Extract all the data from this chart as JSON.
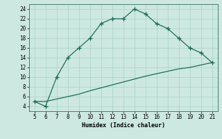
{
  "xlabel": "Humidex (Indice chaleur)",
  "bg_color": "#cce8e0",
  "grid_color": "#b0d4cc",
  "line_color": "#1a6b5a",
  "x_curve": [
    5,
    6,
    7,
    8,
    9,
    10,
    11,
    12,
    13,
    14,
    15,
    16,
    17,
    18,
    19,
    20,
    21
  ],
  "y_curve": [
    5,
    4,
    10,
    14,
    16,
    18,
    21,
    22,
    22,
    24,
    23,
    21,
    20,
    18,
    16,
    15,
    13
  ],
  "x_line": [
    5,
    6,
    7,
    8,
    9,
    10,
    11,
    12,
    13,
    14,
    15,
    16,
    17,
    18,
    19,
    20,
    21
  ],
  "y_line": [
    5,
    5,
    5.5,
    6.0,
    6.5,
    7.2,
    7.8,
    8.4,
    9.0,
    9.6,
    10.2,
    10.7,
    11.2,
    11.7,
    12.0,
    12.5,
    13.0
  ],
  "xlim": [
    4.5,
    21.5
  ],
  "ylim": [
    3,
    25
  ],
  "xticks": [
    5,
    6,
    7,
    8,
    9,
    10,
    11,
    12,
    13,
    14,
    15,
    16,
    17,
    18,
    19,
    20,
    21
  ],
  "yticks": [
    4,
    6,
    8,
    10,
    12,
    14,
    16,
    18,
    20,
    22,
    24
  ],
  "tick_fontsize": 5.5,
  "xlabel_fontsize": 6.0
}
